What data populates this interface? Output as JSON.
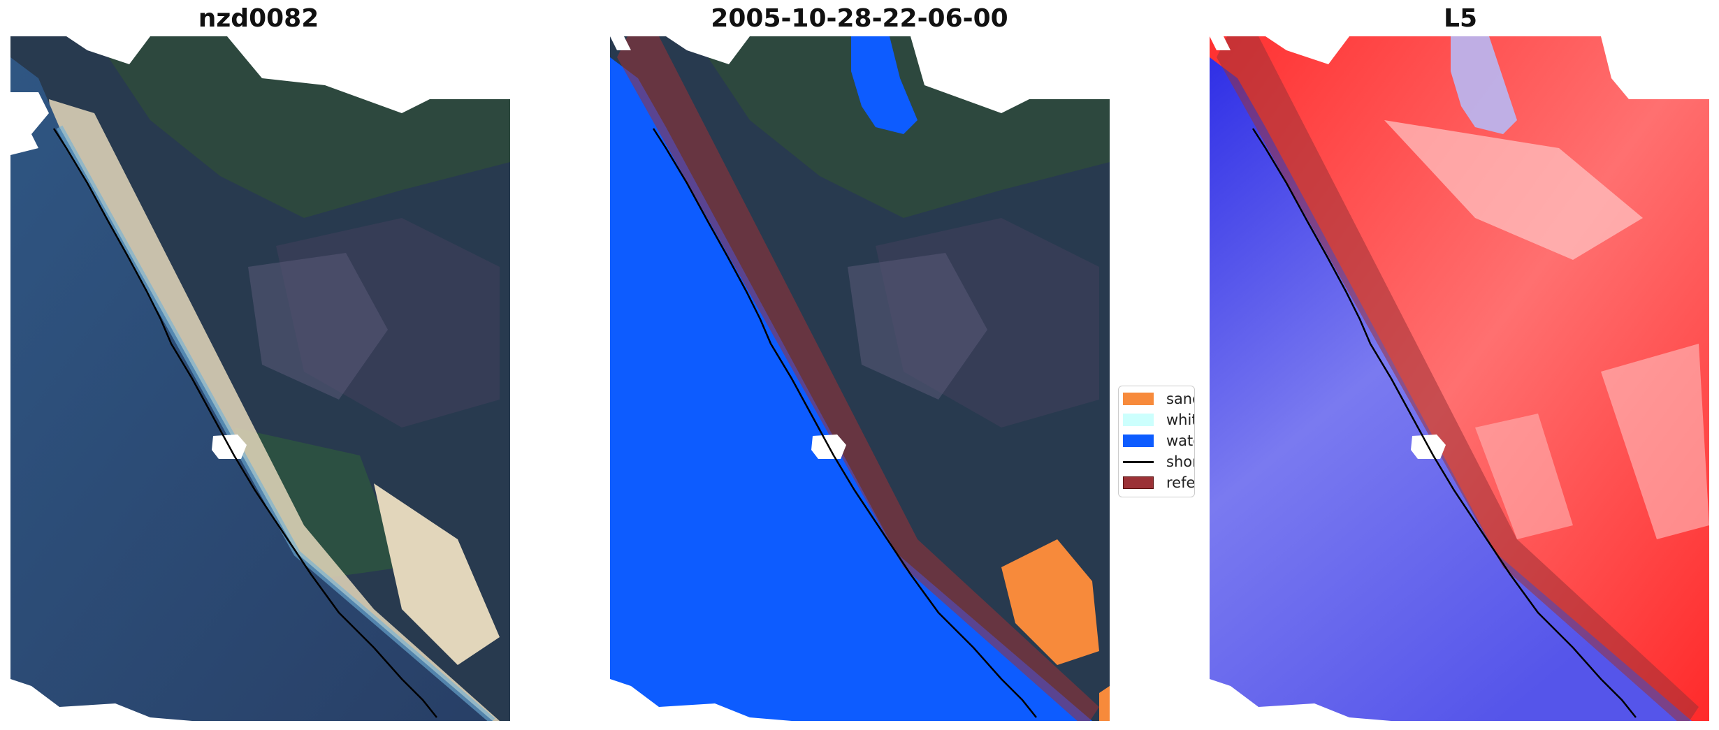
{
  "panels": [
    {
      "title": "nzd0082"
    },
    {
      "title": "2005-10-28-22-06-00"
    },
    {
      "title": "L5"
    }
  ],
  "legend": {
    "items": [
      {
        "label": "sand",
        "color": "#f78a3b",
        "kind": "patch"
      },
      {
        "label": "whitew",
        "color": "#ccfffd",
        "kind": "patch"
      },
      {
        "label": "water",
        "color": "#0d5cff",
        "kind": "patch"
      },
      {
        "label": "shoreli",
        "color": "#000000",
        "kind": "line"
      },
      {
        "label": "referen",
        "color": "#9b3136",
        "kind": "patch"
      }
    ]
  },
  "colors": {
    "ocean_rgb": "#2c4a72",
    "land_rgb": "#2a3b4f",
    "vegetation": "#2e5a3d",
    "sand_beach": "#d9cfb5",
    "water_class": "#0d5cff",
    "sand_class": "#f78a3b",
    "reference_buffer": "#9b3136",
    "index_positive": "#ff2020",
    "index_negative": "#3030e0"
  }
}
